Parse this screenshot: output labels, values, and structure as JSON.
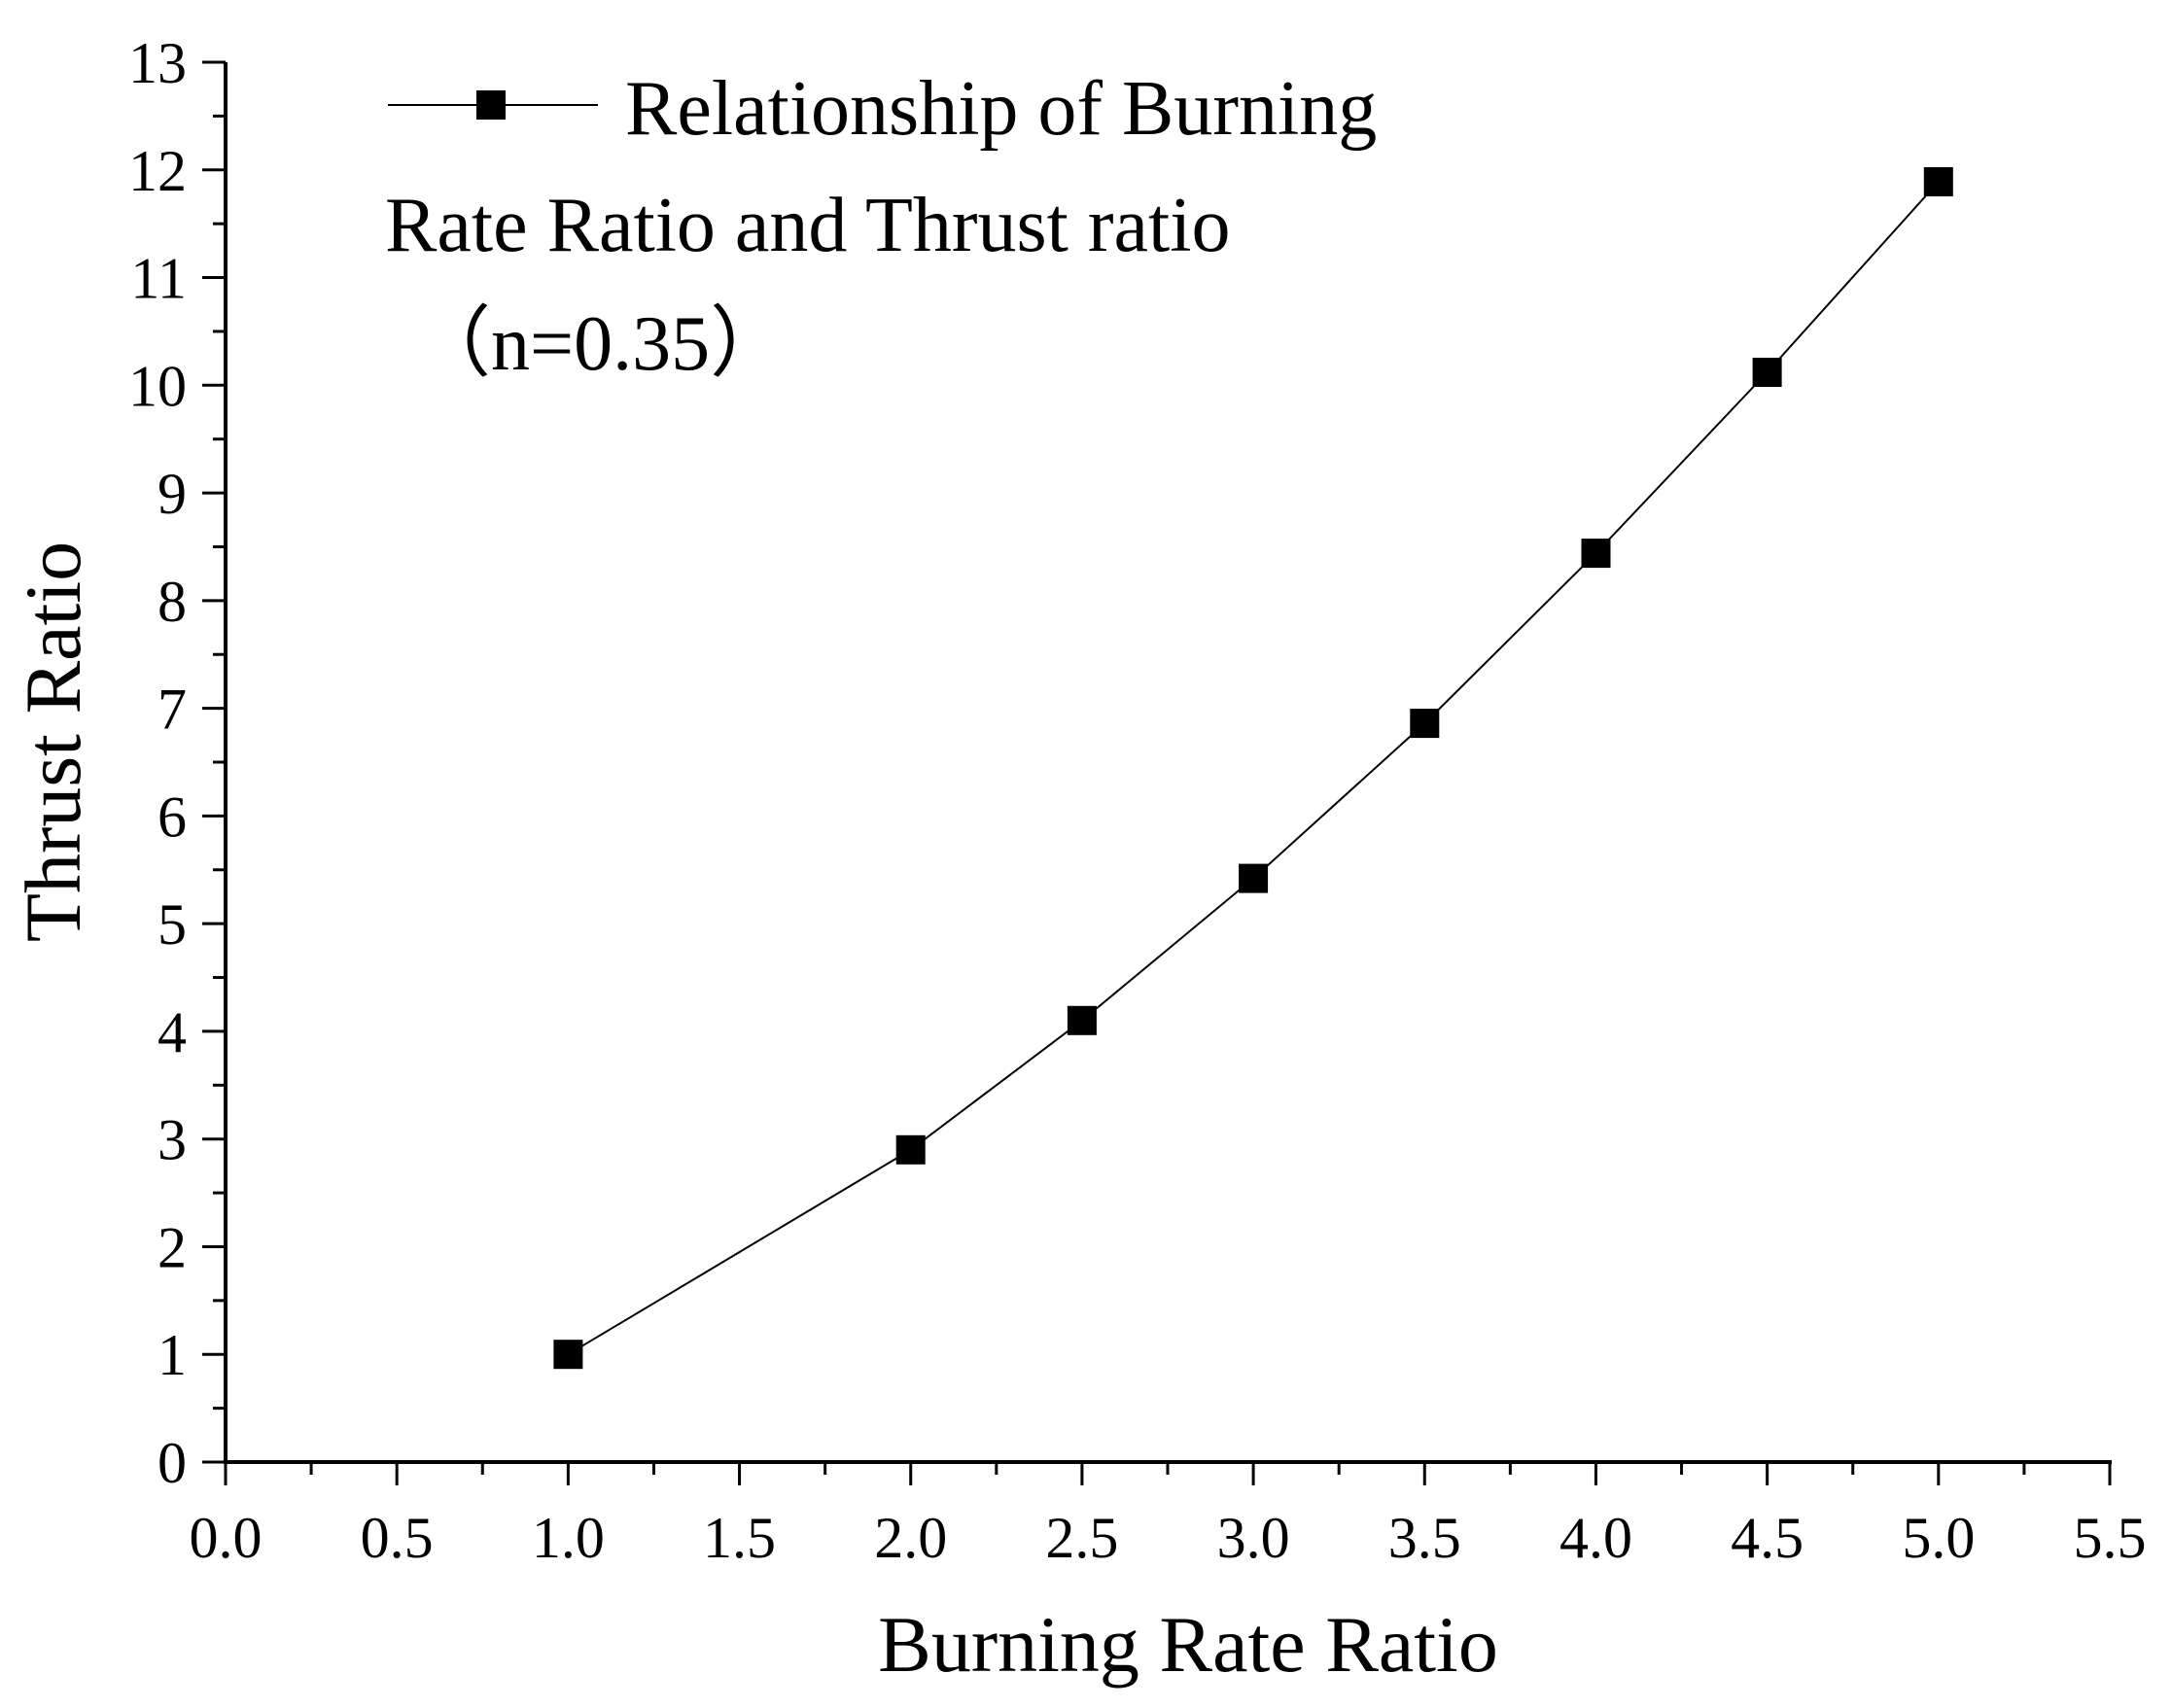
{
  "chart_data": {
    "type": "line",
    "title": "",
    "xlabel": "Burning Rate Ratio",
    "ylabel": "Thrust Ratio",
    "xlim": [
      0,
      5.5
    ],
    "ylim": [
      0,
      13
    ],
    "x_ticks": [
      "0.0",
      "0.5",
      "1.0",
      "1.5",
      "2.0",
      "2.5",
      "3.0",
      "3.5",
      "4.0",
      "4.5",
      "5.0",
      "5.5"
    ],
    "y_ticks": [
      "0",
      "1",
      "2",
      "3",
      "4",
      "5",
      "6",
      "7",
      "8",
      "9",
      "10",
      "11",
      "12",
      "13"
    ],
    "grid": false,
    "legend_position": "top-left",
    "legend_lines": [
      "Relationship of Burning",
      "Rate Ratio and Thrust ratio",
      "（n=0.35）"
    ],
    "series": [
      {
        "name": "Relationship of Burning Rate Ratio and Thrust ratio（n=0.35）",
        "marker": "square",
        "color": "#000000",
        "x": [
          1.0,
          2.0,
          2.5,
          3.0,
          3.5,
          4.0,
          4.5,
          5.0
        ],
        "y": [
          1.0,
          2.9,
          4.1,
          5.42,
          6.86,
          8.44,
          10.12,
          11.89
        ]
      }
    ]
  }
}
